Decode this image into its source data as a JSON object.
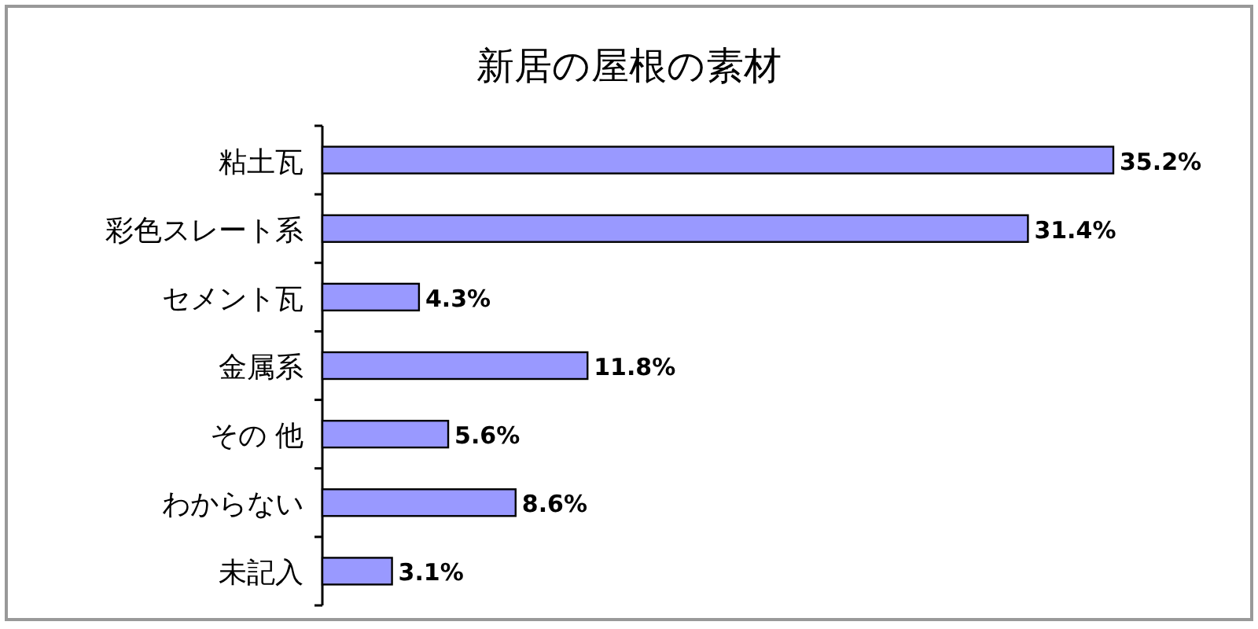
{
  "chart_data": {
    "type": "bar",
    "orientation": "horizontal",
    "title": "新居の屋根の素材",
    "categories": [
      "粘土瓦",
      "彩色スレート系",
      "セメント瓦",
      "金属系",
      "その 他",
      "わからない",
      "未記入"
    ],
    "values": [
      35.2,
      31.4,
      4.3,
      11.8,
      5.6,
      8.6,
      3.1
    ],
    "value_labels": [
      "35.2%",
      "31.4%",
      "4.3%",
      "11.8%",
      "5.6%",
      "8.6%",
      "3.1%"
    ],
    "color": "#9999ff"
  }
}
